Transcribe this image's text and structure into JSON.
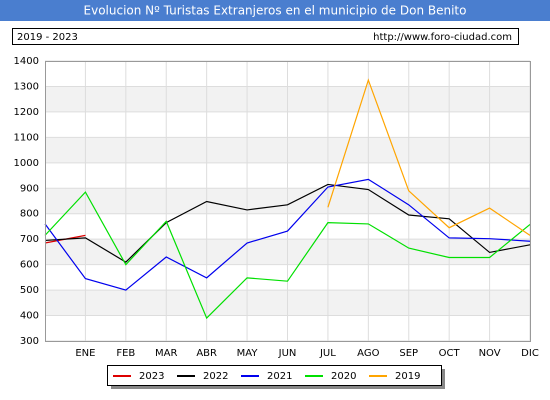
{
  "chart_data": {
    "type": "line",
    "title": "Evolucion Nº Turistas Extranjeros en el municipio de Don Benito",
    "period": "2019 - 2023",
    "source": "http://www.foro-ciudad.com",
    "categories": [
      null,
      "ENE",
      "FEB",
      "MAR",
      "ABR",
      "MAY",
      "JUN",
      "JUL",
      "AGO",
      "SEP",
      "OCT",
      "NOV",
      "DIC"
    ],
    "series": [
      {
        "name": "2023",
        "color": "#dd0000",
        "values": [
          685,
          715,
          null,
          null,
          null,
          null,
          null,
          null,
          null,
          null,
          null,
          null,
          null
        ]
      },
      {
        "name": "2022",
        "color": "#000000",
        "values": [
          695,
          705,
          610,
          765,
          848,
          815,
          835,
          915,
          895,
          795,
          780,
          648,
          678
        ]
      },
      {
        "name": "2021",
        "color": "#0000ee",
        "values": [
          760,
          545,
          500,
          630,
          548,
          685,
          732,
          905,
          935,
          835,
          705,
          702,
          692
        ]
      },
      {
        "name": "2020",
        "color": "#00e000",
        "values": [
          715,
          885,
          600,
          770,
          390,
          548,
          535,
          765,
          760,
          665,
          628,
          628,
          758
        ]
      },
      {
        "name": "2019",
        "color": "#ffa500",
        "values": [
          null,
          null,
          null,
          null,
          null,
          null,
          null,
          825,
          1325,
          890,
          745,
          822,
          715
        ]
      }
    ],
    "ylim": [
      300,
      1400
    ],
    "yticks": [
      300,
      400,
      500,
      600,
      700,
      800,
      900,
      1000,
      1100,
      1200,
      1300,
      1400
    ],
    "grid": true
  }
}
